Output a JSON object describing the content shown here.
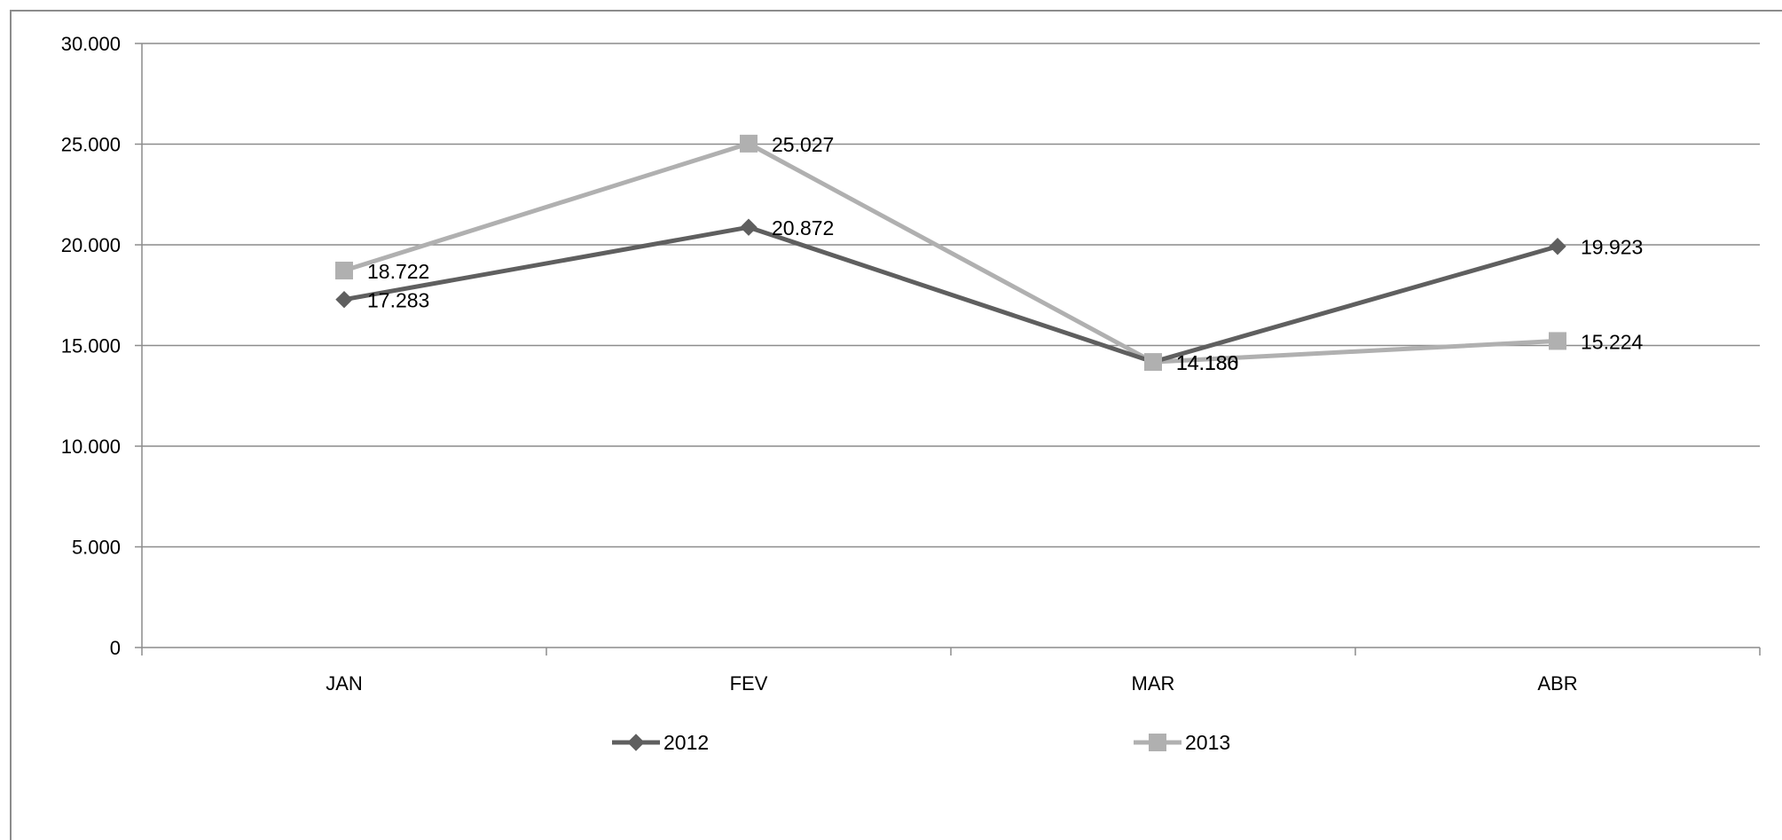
{
  "chart_data": {
    "type": "line",
    "title": "",
    "xlabel": "",
    "ylabel": "",
    "categories": [
      "JAN",
      "FEV",
      "MAR",
      "ABR"
    ],
    "series": [
      {
        "name": "2012",
        "values": [
          17283,
          20872,
          14186,
          19923
        ],
        "value_labels": [
          "17.283",
          "20.872",
          "14.186",
          "19.923"
        ],
        "color": "#5f5f5f",
        "marker": "diamond"
      },
      {
        "name": "2013",
        "values": [
          18722,
          25027,
          14180,
          15224
        ],
        "value_labels": [
          "18.722",
          "25.027",
          "14.180",
          "15.224"
        ],
        "color": "#b0b0b0",
        "marker": "square"
      }
    ],
    "ylim": [
      0,
      30000
    ],
    "yticks": [
      0,
      5000,
      10000,
      15000,
      20000,
      25000,
      30000
    ],
    "ytick_labels": [
      "0",
      "5.000",
      "10.000",
      "15.000",
      "20.000",
      "25.000",
      "30.000"
    ],
    "grid": true,
    "legend_position": "bottom"
  }
}
